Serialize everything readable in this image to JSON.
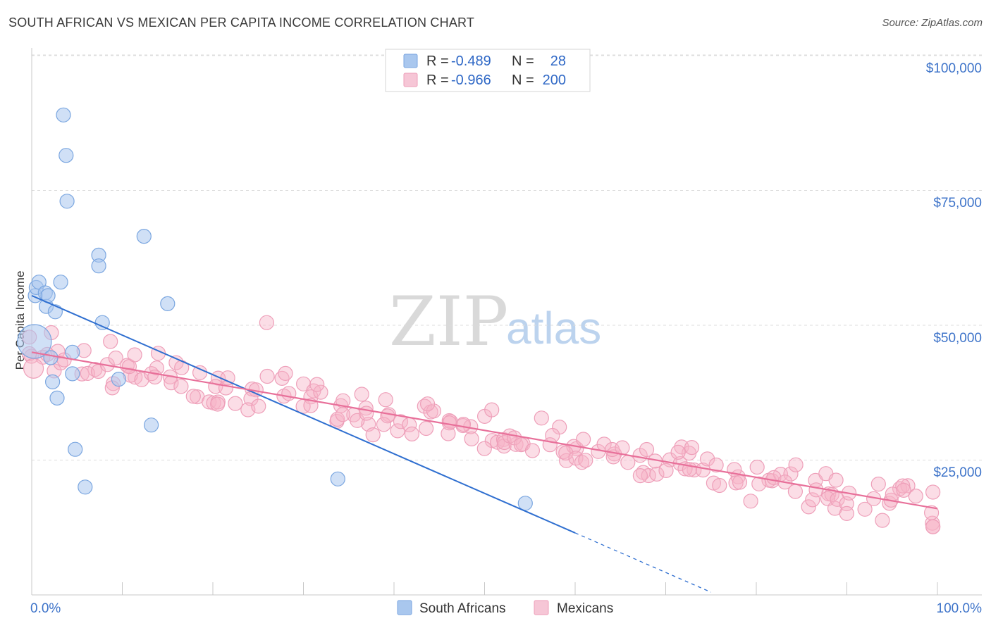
{
  "header": {
    "title": "SOUTH AFRICAN VS MEXICAN PER CAPITA INCOME CORRELATION CHART",
    "source": "Source: ZipAtlas.com"
  },
  "watermark": {
    "zip": "ZIP",
    "atlas": "atlas"
  },
  "legend": {
    "rows": [
      {
        "r_label": "R =",
        "r_value": "-0.489",
        "n_label": "N =",
        "n_value": "28",
        "color": "#a9c7ee"
      },
      {
        "r_label": "R =",
        "r_value": "-0.966",
        "n_label": "N =",
        "n_value": "200",
        "color": "#f6b3c8"
      }
    ]
  },
  "bottom_legend": {
    "items": [
      {
        "label": "South Africans",
        "color": "#a9c7ee"
      },
      {
        "label": "Mexicans",
        "color": "#f6b3c8"
      }
    ]
  },
  "chart_data": {
    "type": "scatter",
    "title": "SOUTH AFRICAN VS MEXICAN PER CAPITA INCOME CORRELATION CHART",
    "xlabel": "",
    "ylabel": "Per Capita Income",
    "x_tick_labels": [
      "0.0%",
      "100.0%"
    ],
    "y_tick_labels": [
      "$25,000",
      "$50,000",
      "$75,000",
      "$100,000"
    ],
    "y_ticks": [
      25000,
      50000,
      75000,
      100000
    ],
    "xlim": [
      0,
      100
    ],
    "ylim": [
      0,
      102000
    ],
    "grid": true,
    "legend_position": "top-center",
    "colors": {
      "south_africans": "#a9c7ee",
      "south_africans_line": "#2f6fd0",
      "mexicans": "#f6b3c8",
      "mexicans_line": "#e8709a"
    },
    "series": [
      {
        "name": "South Africans",
        "r": -0.489,
        "n": 28,
        "trend": {
          "x0": 0,
          "y0": 55500,
          "x1": 60,
          "y1": 11500,
          "dash_to_x": 75
        },
        "points": [
          [
            0.3,
            47000,
            24
          ],
          [
            0.4,
            55500,
            10
          ],
          [
            0.5,
            57000,
            10
          ],
          [
            0.8,
            58000,
            10
          ],
          [
            1.5,
            56000,
            10
          ],
          [
            1.6,
            53500,
            10
          ],
          [
            1.8,
            55500,
            10
          ],
          [
            2.1,
            44000,
            10
          ],
          [
            2.3,
            39500,
            10
          ],
          [
            2.6,
            52500,
            10
          ],
          [
            2.8,
            36500,
            10
          ],
          [
            3.2,
            58000,
            10
          ],
          [
            3.5,
            89000,
            10
          ],
          [
            3.8,
            81500,
            10
          ],
          [
            3.9,
            73000,
            10
          ],
          [
            4.5,
            45000,
            10
          ],
          [
            4.5,
            41000,
            10
          ],
          [
            4.8,
            27000,
            10
          ],
          [
            5.9,
            20000,
            10
          ],
          [
            7.4,
            63000,
            10
          ],
          [
            7.4,
            61000,
            10
          ],
          [
            7.8,
            50500,
            10
          ],
          [
            9.6,
            40000,
            10
          ],
          [
            12.4,
            66500,
            10
          ],
          [
            13.2,
            31500,
            10
          ],
          [
            15,
            54000,
            10
          ],
          [
            33.8,
            21500,
            10
          ],
          [
            54.5,
            17000,
            10
          ]
        ]
      },
      {
        "name": "Mexicans",
        "r": -0.966,
        "n": 200,
        "trend": {
          "x0": 0,
          "y0": 45000,
          "x1": 100,
          "y1": 16000
        }
      }
    ]
  }
}
